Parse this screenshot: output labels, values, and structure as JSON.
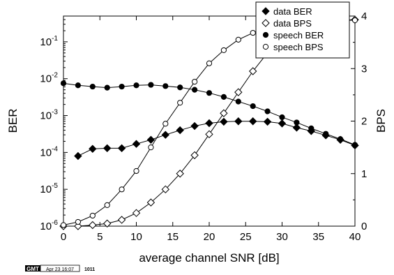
{
  "chart_data": {
    "type": "line",
    "xlabel": "average channel SNR [dB]",
    "ylabel_left": "BER",
    "ylabel_right": "BPS",
    "x_ticks": [
      "0",
      "5",
      "10",
      "15",
      "20",
      "25",
      "30",
      "35",
      "40"
    ],
    "xlim": [
      0,
      40
    ],
    "ylim_left_log": [
      1e-06,
      0.5
    ],
    "ylim_right": [
      0,
      4
    ],
    "y_left_tick_labels": [
      {
        "base": "10",
        "exp": "-6"
      },
      {
        "base": "10",
        "exp": "-5"
      },
      {
        "base": "10",
        "exp": "-4"
      },
      {
        "base": "10",
        "exp": "-3"
      },
      {
        "base": "10",
        "exp": "-2"
      },
      {
        "base": "10",
        "exp": "-1"
      }
    ],
    "y_right_ticks": [
      "0",
      "1",
      "2",
      "3",
      "4"
    ],
    "series": [
      {
        "name": "data BER",
        "axis": "left",
        "marker": "diamond-filled",
        "x": [
          2,
          4,
          6,
          8,
          10,
          12,
          14,
          16,
          18,
          20,
          22,
          24,
          26,
          28,
          30,
          32,
          34,
          36,
          38,
          40
        ],
        "y": [
          8e-05,
          0.000125,
          0.00013,
          0.00013,
          0.00017,
          0.00022,
          0.0003,
          0.0004,
          0.00052,
          0.00062,
          0.00068,
          0.0007,
          0.0007,
          0.00068,
          0.00061,
          0.00047,
          0.00038,
          0.00029,
          0.00022,
          0.000155
        ]
      },
      {
        "name": "data BPS",
        "axis": "right",
        "marker": "diamond-open",
        "x": [
          0,
          2,
          4,
          6,
          8,
          10,
          12,
          14,
          16,
          18,
          20,
          22,
          24,
          26,
          28,
          30,
          32,
          34,
          36,
          38,
          40
        ],
        "y": [
          0.0,
          0.0,
          0.02,
          0.05,
          0.12,
          0.25,
          0.45,
          0.7,
          1.0,
          1.35,
          1.75,
          2.15,
          2.55,
          2.95,
          3.3,
          3.55,
          3.75,
          3.85,
          3.9,
          3.92,
          3.93
        ]
      },
      {
        "name": "speech BER",
        "axis": "left",
        "marker": "circle-filled",
        "x": [
          0,
          2,
          4,
          6,
          8,
          10,
          12,
          14,
          16,
          18,
          20,
          22,
          24,
          26,
          28,
          30,
          32,
          34,
          36,
          38,
          40
        ],
        "y": [
          0.0075,
          0.0066,
          0.0061,
          0.0057,
          0.0061,
          0.0066,
          0.0068,
          0.0063,
          0.0058,
          0.005,
          0.0041,
          0.0032,
          0.0024,
          0.0018,
          0.0013,
          0.0009,
          0.00065,
          0.00045,
          0.00032,
          0.00023,
          0.00016
        ]
      },
      {
        "name": "speech BPS",
        "axis": "right",
        "marker": "circle-open",
        "x": [
          0,
          2,
          4,
          6,
          8,
          10,
          12,
          14,
          16,
          18,
          20,
          22,
          24,
          26,
          28,
          30,
          32,
          34,
          36,
          38,
          40
        ],
        "y": [
          0.02,
          0.08,
          0.2,
          0.4,
          0.7,
          1.05,
          1.5,
          1.95,
          2.35,
          2.75,
          3.1,
          3.35,
          3.55,
          3.68,
          3.78,
          3.84,
          3.88,
          3.9,
          3.91,
          3.92,
          3.92
        ]
      }
    ],
    "legend": {
      "position": "top-right",
      "entries": [
        "data BER",
        "data BPS",
        "speech BER",
        "speech BPS"
      ]
    }
  },
  "footer": {
    "badge": "GMT",
    "date": "Apr 23 16:07",
    "code": "1011"
  }
}
